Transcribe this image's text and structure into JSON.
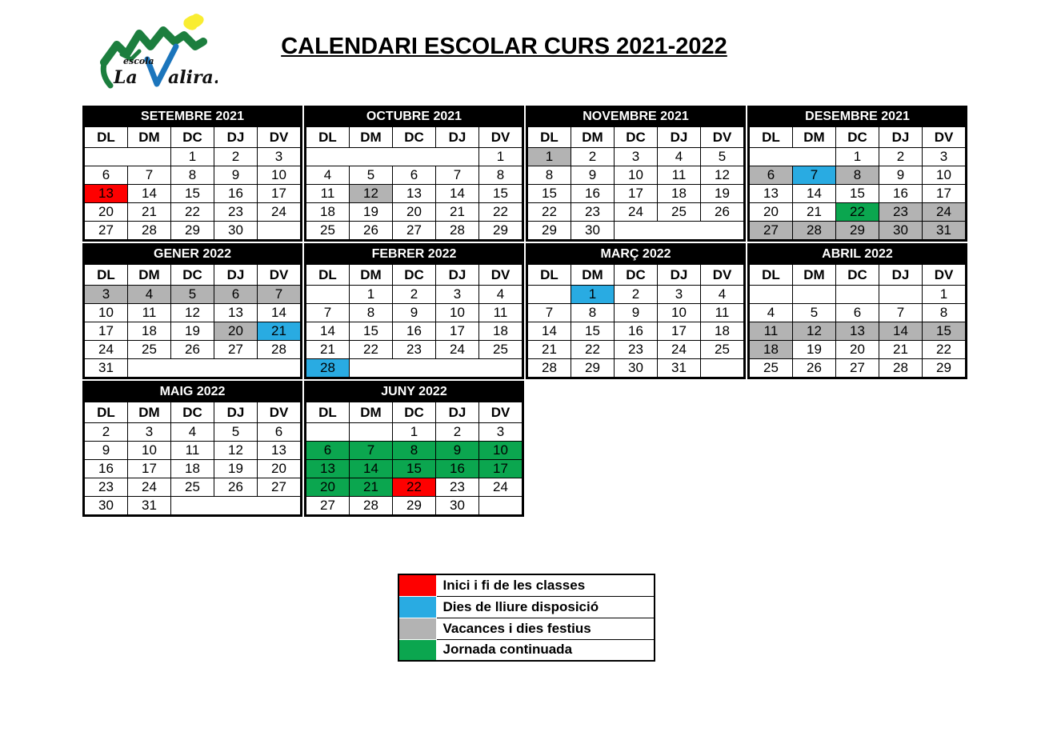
{
  "header": {
    "title": "CALENDARI ESCOLAR CURS 2021-2022"
  },
  "logo": {
    "school_word": "escola",
    "name_prefix": "La",
    "name_suffix": "alira."
  },
  "colors": {
    "red": "#FE0000",
    "blue": "#29ABE2",
    "gray": "#B3B3B3",
    "green": "#0BA64F",
    "logo_green": "#1C7E3E",
    "logo_yellow": "#F9ED32",
    "logo_blue": "#1B75BC"
  },
  "weekday_headers": [
    "DL",
    "DM",
    "DC",
    "DJ",
    "DV"
  ],
  "months": [
    {
      "name": "SETEMBRE 2021",
      "rows": [
        [
          {
            "d": "",
            "span": 2
          },
          {
            "d": "1"
          },
          {
            "d": "2"
          },
          {
            "d": "3"
          }
        ],
        [
          {
            "d": "6"
          },
          {
            "d": "7"
          },
          {
            "d": "8"
          },
          {
            "d": "9"
          },
          {
            "d": "10"
          }
        ],
        [
          {
            "d": "13",
            "c": "red"
          },
          {
            "d": "14"
          },
          {
            "d": "15"
          },
          {
            "d": "16"
          },
          {
            "d": "17"
          }
        ],
        [
          {
            "d": "20"
          },
          {
            "d": "21"
          },
          {
            "d": "22"
          },
          {
            "d": "23"
          },
          {
            "d": "24"
          }
        ],
        [
          {
            "d": "27"
          },
          {
            "d": "28"
          },
          {
            "d": "29"
          },
          {
            "d": "30"
          },
          {
            "d": ""
          }
        ]
      ]
    },
    {
      "name": "OCTUBRE 2021",
      "rows": [
        [
          {
            "d": "",
            "span": 4
          },
          {
            "d": "1"
          }
        ],
        [
          {
            "d": "4"
          },
          {
            "d": "5"
          },
          {
            "d": "6"
          },
          {
            "d": "7"
          },
          {
            "d": "8"
          }
        ],
        [
          {
            "d": "11"
          },
          {
            "d": "12",
            "c": "gray"
          },
          {
            "d": "13"
          },
          {
            "d": "14"
          },
          {
            "d": "15"
          }
        ],
        [
          {
            "d": "18"
          },
          {
            "d": "19"
          },
          {
            "d": "20"
          },
          {
            "d": "21"
          },
          {
            "d": "22"
          }
        ],
        [
          {
            "d": "25"
          },
          {
            "d": "26"
          },
          {
            "d": "27"
          },
          {
            "d": "28"
          },
          {
            "d": "29"
          }
        ]
      ]
    },
    {
      "name": "NOVEMBRE 2021",
      "rows": [
        [
          {
            "d": "1",
            "c": "gray"
          },
          {
            "d": "2"
          },
          {
            "d": "3"
          },
          {
            "d": "4"
          },
          {
            "d": "5"
          }
        ],
        [
          {
            "d": "8"
          },
          {
            "d": "9"
          },
          {
            "d": "10"
          },
          {
            "d": "11"
          },
          {
            "d": "12"
          }
        ],
        [
          {
            "d": "15"
          },
          {
            "d": "16"
          },
          {
            "d": "17"
          },
          {
            "d": "18"
          },
          {
            "d": "19"
          }
        ],
        [
          {
            "d": "22"
          },
          {
            "d": "23"
          },
          {
            "d": "24"
          },
          {
            "d": "25"
          },
          {
            "d": "26"
          }
        ],
        [
          {
            "d": "29"
          },
          {
            "d": "30"
          },
          {
            "d": "",
            "span": 3
          }
        ]
      ]
    },
    {
      "name": "DESEMBRE 2021",
      "rows": [
        [
          {
            "d": "",
            "span": 2
          },
          {
            "d": "1"
          },
          {
            "d": "2"
          },
          {
            "d": "3"
          }
        ],
        [
          {
            "d": "6",
            "c": "gray"
          },
          {
            "d": "7",
            "c": "blue"
          },
          {
            "d": "8",
            "c": "gray"
          },
          {
            "d": "9"
          },
          {
            "d": "10"
          }
        ],
        [
          {
            "d": "13"
          },
          {
            "d": "14"
          },
          {
            "d": "15"
          },
          {
            "d": "16"
          },
          {
            "d": "17"
          }
        ],
        [
          {
            "d": "20"
          },
          {
            "d": "21"
          },
          {
            "d": "22",
            "c": "green"
          },
          {
            "d": "23",
            "c": "gray"
          },
          {
            "d": "24",
            "c": "gray"
          }
        ],
        [
          {
            "d": "27",
            "c": "gray"
          },
          {
            "d": "28",
            "c": "gray"
          },
          {
            "d": "29",
            "c": "gray"
          },
          {
            "d": "30",
            "c": "gray"
          },
          {
            "d": "31",
            "c": "gray"
          }
        ]
      ]
    },
    {
      "name": "GENER 2022",
      "rows": [
        [
          {
            "d": "3",
            "c": "gray"
          },
          {
            "d": "4",
            "c": "gray"
          },
          {
            "d": "5",
            "c": "gray"
          },
          {
            "d": "6",
            "c": "gray"
          },
          {
            "d": "7",
            "c": "gray"
          }
        ],
        [
          {
            "d": "10"
          },
          {
            "d": "11"
          },
          {
            "d": "12"
          },
          {
            "d": "13"
          },
          {
            "d": "14"
          }
        ],
        [
          {
            "d": "17"
          },
          {
            "d": "18"
          },
          {
            "d": "19"
          },
          {
            "d": "20",
            "c": "gray"
          },
          {
            "d": "21",
            "c": "blue"
          }
        ],
        [
          {
            "d": "24"
          },
          {
            "d": "25"
          },
          {
            "d": "26"
          },
          {
            "d": "27"
          },
          {
            "d": "28"
          }
        ],
        [
          {
            "d": "31"
          },
          {
            "d": "",
            "span": 4
          }
        ]
      ]
    },
    {
      "name": "FEBRER 2022",
      "rows": [
        [
          {
            "d": ""
          },
          {
            "d": "1"
          },
          {
            "d": "2"
          },
          {
            "d": "3"
          },
          {
            "d": "4"
          }
        ],
        [
          {
            "d": "7"
          },
          {
            "d": "8"
          },
          {
            "d": "9"
          },
          {
            "d": "10"
          },
          {
            "d": "11"
          }
        ],
        [
          {
            "d": "14"
          },
          {
            "d": "15"
          },
          {
            "d": "16"
          },
          {
            "d": "17"
          },
          {
            "d": "18"
          }
        ],
        [
          {
            "d": "21"
          },
          {
            "d": "22"
          },
          {
            "d": "23"
          },
          {
            "d": "24"
          },
          {
            "d": "25"
          }
        ],
        [
          {
            "d": "28",
            "c": "blue"
          },
          {
            "d": "",
            "span": 4
          }
        ]
      ]
    },
    {
      "name": "MARÇ 2022",
      "rows": [
        [
          {
            "d": ""
          },
          {
            "d": "1",
            "c": "blue"
          },
          {
            "d": "2"
          },
          {
            "d": "3"
          },
          {
            "d": "4"
          }
        ],
        [
          {
            "d": "7"
          },
          {
            "d": "8"
          },
          {
            "d": "9"
          },
          {
            "d": "10"
          },
          {
            "d": "11"
          }
        ],
        [
          {
            "d": "14"
          },
          {
            "d": "15"
          },
          {
            "d": "16"
          },
          {
            "d": "17"
          },
          {
            "d": "18"
          }
        ],
        [
          {
            "d": "21"
          },
          {
            "d": "22"
          },
          {
            "d": "23"
          },
          {
            "d": "24"
          },
          {
            "d": "25"
          }
        ],
        [
          {
            "d": "28"
          },
          {
            "d": "29"
          },
          {
            "d": "30"
          },
          {
            "d": "31"
          },
          {
            "d": ""
          }
        ]
      ]
    },
    {
      "name": "ABRIL 2022",
      "rows": [
        [
          {
            "d": ""
          },
          {
            "d": ""
          },
          {
            "d": ""
          },
          {
            "d": ""
          },
          {
            "d": "1"
          }
        ],
        [
          {
            "d": "4"
          },
          {
            "d": "5"
          },
          {
            "d": "6"
          },
          {
            "d": "7"
          },
          {
            "d": "8"
          }
        ],
        [
          {
            "d": "11",
            "c": "gray"
          },
          {
            "d": "12",
            "c": "gray"
          },
          {
            "d": "13",
            "c": "gray"
          },
          {
            "d": "14",
            "c": "gray"
          },
          {
            "d": "15",
            "c": "gray"
          }
        ],
        [
          {
            "d": "18",
            "c": "gray"
          },
          {
            "d": "19"
          },
          {
            "d": "20"
          },
          {
            "d": "21"
          },
          {
            "d": "22"
          }
        ],
        [
          {
            "d": "25"
          },
          {
            "d": "26"
          },
          {
            "d": "27"
          },
          {
            "d": "28"
          },
          {
            "d": "29"
          }
        ]
      ]
    },
    {
      "name": "MAIG 2022",
      "rows": [
        [
          {
            "d": "2"
          },
          {
            "d": "3"
          },
          {
            "d": "4"
          },
          {
            "d": "5"
          },
          {
            "d": "6"
          }
        ],
        [
          {
            "d": "9"
          },
          {
            "d": "10"
          },
          {
            "d": "11"
          },
          {
            "d": "12"
          },
          {
            "d": "13"
          }
        ],
        [
          {
            "d": "16"
          },
          {
            "d": "17"
          },
          {
            "d": "18"
          },
          {
            "d": "19"
          },
          {
            "d": "20"
          }
        ],
        [
          {
            "d": "23"
          },
          {
            "d": "24"
          },
          {
            "d": "25"
          },
          {
            "d": "26"
          },
          {
            "d": "27"
          }
        ],
        [
          {
            "d": "30"
          },
          {
            "d": "31"
          },
          {
            "d": "",
            "span": 3
          }
        ]
      ]
    },
    {
      "name": "JUNY 2022",
      "rows": [
        [
          {
            "d": ""
          },
          {
            "d": ""
          },
          {
            "d": "1"
          },
          {
            "d": "2"
          },
          {
            "d": "3"
          }
        ],
        [
          {
            "d": "6",
            "c": "green"
          },
          {
            "d": "7",
            "c": "green"
          },
          {
            "d": "8",
            "c": "green"
          },
          {
            "d": "9",
            "c": "green"
          },
          {
            "d": "10",
            "c": "green"
          }
        ],
        [
          {
            "d": "13",
            "c": "green"
          },
          {
            "d": "14",
            "c": "green"
          },
          {
            "d": "15",
            "c": "green"
          },
          {
            "d": "16",
            "c": "green"
          },
          {
            "d": "17",
            "c": "green"
          }
        ],
        [
          {
            "d": "20",
            "c": "green"
          },
          {
            "d": "21",
            "c": "green"
          },
          {
            "d": "22",
            "c": "red"
          },
          {
            "d": "23"
          },
          {
            "d": "24"
          }
        ],
        [
          {
            "d": "27"
          },
          {
            "d": "28"
          },
          {
            "d": "29"
          },
          {
            "d": "30"
          },
          {
            "d": ""
          }
        ]
      ]
    }
  ],
  "legend": [
    {
      "color": "red",
      "label": "Inici i fi de les classes"
    },
    {
      "color": "blue",
      "label": "Dies de lliure disposició"
    },
    {
      "color": "gray",
      "label": "Vacances i dies festius"
    },
    {
      "color": "green",
      "label": "Jornada continuada"
    }
  ]
}
